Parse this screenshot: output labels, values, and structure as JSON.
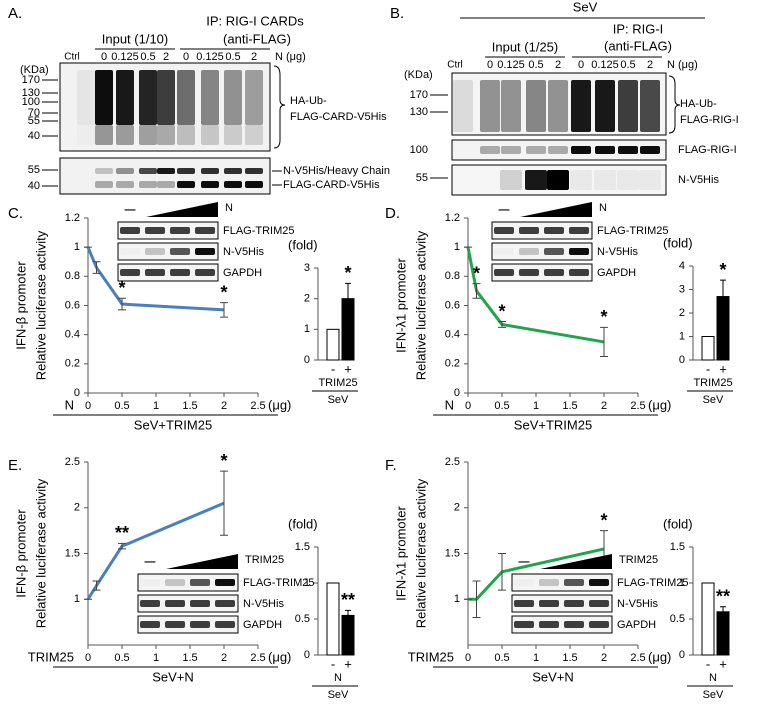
{
  "panels": {
    "A": {
      "letter": "A.",
      "input": "Input (1/10)",
      "ip": [
        "IP: RIG-I CARDs",
        "(anti-FLAG)"
      ],
      "ctrl": "Ctrl",
      "lanes": [
        "0",
        "0.125",
        "0.5",
        "2",
        "0",
        "0.125",
        "0.5",
        "2"
      ],
      "unit": "N (μg)",
      "kda": "(KDa)",
      "markers_top": [
        "170",
        "130",
        "100",
        "70",
        "55",
        "40"
      ],
      "markers_bottom": [
        "55",
        "40"
      ],
      "label_top": [
        "HA-Ub-",
        "FLAG-CARD-V5His"
      ],
      "label_bottom": [
        "N-V5His/Heavy Chain",
        "FLAG-CARD-V5His"
      ]
    },
    "B": {
      "letter": "B.",
      "sev": "SeV",
      "input": "Input (1/25)",
      "ip": [
        "IP: RIG-I",
        "(anti-FLAG)"
      ],
      "ctrl": "Ctrl",
      "lanes": [
        "0",
        "0.125",
        "0.5",
        "2",
        "0",
        "0.125",
        "0.5",
        "2"
      ],
      "unit": "N (μg)",
      "kda": "(KDa)",
      "markers_top": [
        "170",
        "130"
      ],
      "marker_mid": "100",
      "marker_bottom": "55",
      "label_top": [
        "HA-Ub-",
        "FLAG-RIG-I"
      ],
      "label_mid": "FLAG-RIG-I",
      "label_bottom": "N-V5His"
    },
    "C": {
      "letter": "C."
    },
    "D": {
      "letter": "D."
    },
    "E": {
      "letter": "E."
    },
    "F": {
      "letter": "F."
    }
  },
  "chart_data": [
    {
      "type": "line",
      "x": [
        0,
        0.125,
        0.5,
        2
      ],
      "values": [
        1,
        0.86,
        0.61,
        0.57
      ],
      "errors": [
        0,
        0.04,
        0.04,
        0.05
      ],
      "color": "#4a7fc1",
      "point_labels": [
        null,
        null,
        "*",
        "*"
      ],
      "ylabel": [
        "IFN-β promoter",
        "Relative luciferase activity"
      ],
      "x_name": "N",
      "x_unit": "(μg)",
      "xlabel": "SeV+TRIM25",
      "xlim": [
        0,
        2.5
      ],
      "xticks": [
        0,
        0.5,
        1,
        1.5,
        2,
        2.5
      ],
      "ylim": [
        0,
        1.2
      ],
      "yticks": [
        0,
        0.2,
        0.4,
        0.6,
        0.8,
        1,
        1.2
      ],
      "inset": {
        "dash": "—",
        "ramp_label": "N",
        "rows": [
          "FLAG-TRIM25",
          "N-V5His",
          "GAPDH"
        ]
      }
    },
    {
      "type": "bar",
      "categories": [
        "-",
        "+"
      ],
      "values": [
        1,
        2
      ],
      "errors": [
        0,
        0.5
      ],
      "colors": [
        "#ffffff",
        "#000000"
      ],
      "bar_labels": [
        null,
        "*"
      ],
      "unit_label": "(fold)",
      "group": "TRIM25",
      "condition": "SeV",
      "ylim": [
        0,
        3
      ],
      "yticks": [
        0,
        1,
        2,
        3
      ]
    },
    {
      "type": "line",
      "x": [
        0,
        0.125,
        0.5,
        2
      ],
      "values": [
        1,
        0.7,
        0.47,
        0.35
      ],
      "errors": [
        0,
        0.05,
        0.02,
        0.1
      ],
      "color": "#1fa64a",
      "point_labels": [
        null,
        "*",
        "*",
        "*"
      ],
      "ylabel": [
        "IFN-λ1 promoter",
        "Relative luciferase activity"
      ],
      "x_name": "N",
      "x_unit": "(μg)",
      "xlabel": "SeV+TRIM25",
      "xlim": [
        0,
        2.5
      ],
      "xticks": [
        0,
        0.5,
        1,
        1.5,
        2,
        2.5
      ],
      "ylim": [
        0,
        1.2
      ],
      "yticks": [
        0,
        0.2,
        0.4,
        0.6,
        0.8,
        1,
        1.2
      ],
      "inset": {
        "dash": "—",
        "ramp_label": "N",
        "rows": [
          "FLAG-TRIM25",
          "N-V5His",
          "GAPDH"
        ]
      }
    },
    {
      "type": "bar",
      "categories": [
        "-",
        "+"
      ],
      "values": [
        1,
        2.7
      ],
      "errors": [
        0,
        0.7
      ],
      "colors": [
        "#ffffff",
        "#000000"
      ],
      "bar_labels": [
        null,
        "*"
      ],
      "unit_label": "(fold)",
      "group": "TRIM25",
      "condition": "SeV",
      "ylim": [
        0,
        4
      ],
      "yticks": [
        0,
        1,
        2,
        3,
        4
      ]
    },
    {
      "type": "line",
      "x": [
        0,
        0.125,
        0.5,
        2
      ],
      "values": [
        1,
        1.15,
        1.58,
        2.05
      ],
      "errors": [
        0,
        0.05,
        0.03,
        0.35
      ],
      "color": "#4a7fc1",
      "point_labels": [
        null,
        null,
        "**",
        "*"
      ],
      "ylabel": [
        "IFN-β promoter",
        "Relative luciferase activity"
      ],
      "x_name": "TRIM25",
      "x_unit": "(μg)",
      "xlabel": "SeV+N",
      "xlim": [
        0,
        2.5
      ],
      "xticks": [
        0,
        0.5,
        1,
        1.5,
        2,
        2.5
      ],
      "ylim": [
        0.5,
        2.5
      ],
      "yticks": [
        1,
        1.5,
        2,
        2.5
      ],
      "inset": {
        "dash": "—",
        "ramp_label": "TRIM25",
        "rows": [
          "FLAG-TRIM25",
          "N-V5His",
          "GAPDH"
        ]
      }
    },
    {
      "type": "bar",
      "categories": [
        "-",
        "+"
      ],
      "values": [
        1,
        0.55
      ],
      "errors": [
        0,
        0.07
      ],
      "colors": [
        "#ffffff",
        "#000000"
      ],
      "bar_labels": [
        null,
        "**"
      ],
      "unit_label": "(fold)",
      "group": "N",
      "condition": "SeV",
      "ylim": [
        0,
        1.5
      ],
      "yticks": [
        0,
        0.5,
        1,
        1.5
      ]
    },
    {
      "type": "line",
      "x": [
        0,
        0.125,
        0.5,
        2
      ],
      "values": [
        1,
        1,
        1.3,
        1.55
      ],
      "errors": [
        0,
        0.2,
        0.2,
        0.2
      ],
      "color": "#1fa64a",
      "point_labels": [
        null,
        null,
        null,
        "*"
      ],
      "ylabel": [
        "IFN-λ1 promoter",
        "Relative luciferase activity"
      ],
      "x_name": "TRIM25",
      "x_unit": "(μg)",
      "xlabel": "SeV+N",
      "xlim": [
        0,
        2.5
      ],
      "xticks": [
        0,
        0.5,
        1,
        1.5,
        2,
        2.5
      ],
      "ylim": [
        0.5,
        2.5
      ],
      "yticks": [
        1,
        1.5,
        2,
        2.5
      ],
      "inset": {
        "dash": "—",
        "ramp_label": "TRIM25",
        "rows": [
          "FLAG-TRIM25",
          "N-V5His",
          "GAPDH"
        ]
      }
    },
    {
      "type": "bar",
      "categories": [
        "-",
        "+"
      ],
      "values": [
        1,
        0.6
      ],
      "errors": [
        0,
        0.07
      ],
      "colors": [
        "#ffffff",
        "#000000"
      ],
      "bar_labels": [
        null,
        "**"
      ],
      "unit_label": "(fold)",
      "group": "N",
      "condition": "SeV",
      "ylim": [
        0,
        1.5
      ],
      "yticks": [
        0,
        0.5,
        1,
        1.5
      ]
    }
  ]
}
